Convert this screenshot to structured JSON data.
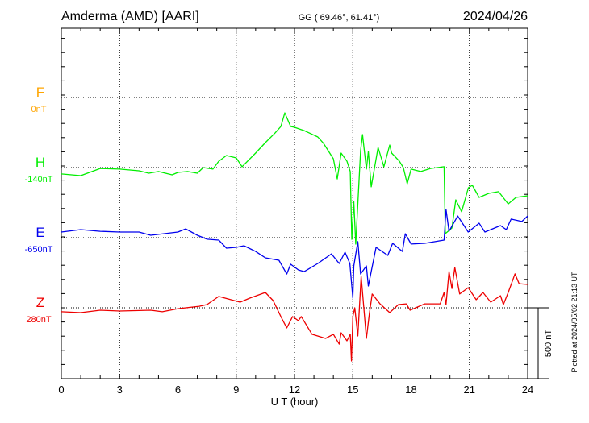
{
  "header": {
    "station": "Amderma (AMD)  [AARI]",
    "coords": "GG ( 69.46°,  61.41°)",
    "date": "2024/04/26"
  },
  "footer": {
    "plotted": "Plotted at 2024/05/02 21:13 UT"
  },
  "chart_data": {
    "type": "line",
    "title": "Amderma (AMD)  [AARI]",
    "xlabel": "U T (hour)",
    "ylabel": "",
    "xlim": [
      0,
      24
    ],
    "x_ticks": [
      "0",
      "3",
      "6",
      "9",
      "12",
      "15",
      "18",
      "21",
      "24"
    ],
    "grid": "dotted",
    "scale_bar": {
      "value": 500,
      "label": "500 nT"
    },
    "series": [
      {
        "name": "F",
        "baseline_label": "0nT",
        "baseline": 0,
        "color": "#ffa500",
        "points": []
      },
      {
        "name": "H",
        "baseline_label": "-140nT",
        "baseline": -140,
        "color": "#00ee00",
        "points": [
          [
            0,
            -185
          ],
          [
            1,
            -197
          ],
          [
            2,
            -146
          ],
          [
            3,
            -151
          ],
          [
            4,
            -163
          ],
          [
            4.5,
            -180
          ],
          [
            5,
            -168
          ],
          [
            5.7,
            -191
          ],
          [
            6,
            -174
          ],
          [
            6.5,
            -168
          ],
          [
            7,
            -180
          ],
          [
            7.3,
            -140
          ],
          [
            7.8,
            -151
          ],
          [
            8.1,
            -95
          ],
          [
            8.5,
            -55
          ],
          [
            9,
            -72
          ],
          [
            9.3,
            -134
          ],
          [
            10,
            -38
          ],
          [
            10.5,
            36
          ],
          [
            11,
            104
          ],
          [
            11.3,
            150
          ],
          [
            11.5,
            246
          ],
          [
            11.8,
            150
          ],
          [
            12,
            144
          ],
          [
            12.5,
            121
          ],
          [
            13.2,
            76
          ],
          [
            13.5,
            30
          ],
          [
            14,
            -78
          ],
          [
            14.2,
            -220
          ],
          [
            14.4,
            -38
          ],
          [
            14.7,
            -95
          ],
          [
            14.87,
            -168
          ],
          [
            14.95,
            -646
          ],
          [
            15.05,
            -379
          ],
          [
            15.15,
            -680
          ],
          [
            15.4,
            -21
          ],
          [
            15.5,
            93
          ],
          [
            15.7,
            -151
          ],
          [
            15.8,
            -26
          ],
          [
            15.95,
            -276
          ],
          [
            16.3,
            2
          ],
          [
            16.6,
            -134
          ],
          [
            16.9,
            19
          ],
          [
            17,
            -38
          ],
          [
            17.4,
            -95
          ],
          [
            17.6,
            -140
          ],
          [
            17.8,
            -254
          ],
          [
            18,
            -151
          ],
          [
            18.5,
            -168
          ],
          [
            19,
            -146
          ],
          [
            19.7,
            -134
          ],
          [
            19.76,
            -606
          ],
          [
            20.1,
            -566
          ],
          [
            20.3,
            -367
          ],
          [
            20.6,
            -452
          ],
          [
            20.95,
            -282
          ],
          [
            21.15,
            -265
          ],
          [
            21.5,
            -350
          ],
          [
            22,
            -322
          ],
          [
            22.5,
            -310
          ],
          [
            23,
            -396
          ],
          [
            23.4,
            -350
          ],
          [
            24,
            -339
          ]
        ]
      },
      {
        "name": "E",
        "baseline_label": "-650nT",
        "baseline": -650,
        "color": "#0000ee",
        "points": [
          [
            0,
            -610
          ],
          [
            1,
            -593
          ],
          [
            2,
            -605
          ],
          [
            3,
            -610
          ],
          [
            4,
            -610
          ],
          [
            4.6,
            -633
          ],
          [
            6,
            -610
          ],
          [
            6.4,
            -588
          ],
          [
            7,
            -633
          ],
          [
            7.5,
            -661
          ],
          [
            8.1,
            -667
          ],
          [
            8.5,
            -724
          ],
          [
            9,
            -718
          ],
          [
            9.4,
            -707
          ],
          [
            10,
            -747
          ],
          [
            10.5,
            -792
          ],
          [
            11.2,
            -809
          ],
          [
            11.6,
            -906
          ],
          [
            11.8,
            -837
          ],
          [
            12.2,
            -877
          ],
          [
            12.5,
            -889
          ],
          [
            13.2,
            -832
          ],
          [
            13.9,
            -764
          ],
          [
            14.3,
            -832
          ],
          [
            14.6,
            -752
          ],
          [
            14.85,
            -832
          ],
          [
            15,
            -1076
          ],
          [
            15.05,
            -849
          ],
          [
            15.26,
            -678
          ],
          [
            15.4,
            -906
          ],
          [
            15.7,
            -849
          ],
          [
            15.8,
            -991
          ],
          [
            16.2,
            -718
          ],
          [
            16.8,
            -775
          ],
          [
            17.05,
            -690
          ],
          [
            17.55,
            -747
          ],
          [
            17.7,
            -622
          ],
          [
            18,
            -695
          ],
          [
            18.7,
            -690
          ],
          [
            19.7,
            -667
          ],
          [
            19.8,
            -451
          ],
          [
            19.95,
            -605
          ],
          [
            20.4,
            -497
          ],
          [
            20.94,
            -610
          ],
          [
            21.5,
            -548
          ],
          [
            21.8,
            -610
          ],
          [
            22.6,
            -565
          ],
          [
            22.9,
            -593
          ],
          [
            23.15,
            -519
          ],
          [
            23.7,
            -536
          ],
          [
            24,
            -497
          ]
        ]
      },
      {
        "name": "Z",
        "baseline_label": "280nT",
        "baseline": 280,
        "color": "#ee0000",
        "points": [
          [
            0,
            252
          ],
          [
            1,
            246
          ],
          [
            2,
            263
          ],
          [
            3,
            257
          ],
          [
            4.6,
            263
          ],
          [
            5.2,
            252
          ],
          [
            6,
            274
          ],
          [
            7.1,
            291
          ],
          [
            7.5,
            303
          ],
          [
            8.1,
            360
          ],
          [
            9.2,
            320
          ],
          [
            9.7,
            348
          ],
          [
            10.5,
            388
          ],
          [
            10.9,
            331
          ],
          [
            11.3,
            218
          ],
          [
            11.6,
            138
          ],
          [
            11.9,
            218
          ],
          [
            12.2,
            189
          ],
          [
            12.35,
            218
          ],
          [
            12.9,
            93
          ],
          [
            13.6,
            64
          ],
          [
            14,
            93
          ],
          [
            14.3,
            24
          ],
          [
            14.4,
            104
          ],
          [
            14.7,
            47
          ],
          [
            14.87,
            93
          ],
          [
            14.93,
            -95
          ],
          [
            15,
            218
          ],
          [
            15.1,
            280
          ],
          [
            15.26,
            81
          ],
          [
            15.43,
            502
          ],
          [
            15.7,
            64
          ],
          [
            15.85,
            235
          ],
          [
            16,
            377
          ],
          [
            16.4,
            308
          ],
          [
            16.9,
            246
          ],
          [
            17.35,
            303
          ],
          [
            17.75,
            308
          ],
          [
            17.95,
            263
          ],
          [
            18.7,
            308
          ],
          [
            19.5,
            308
          ],
          [
            19.7,
            388
          ],
          [
            19.8,
            303
          ],
          [
            19.95,
            536
          ],
          [
            20.1,
            416
          ],
          [
            20.25,
            564
          ],
          [
            20.5,
            377
          ],
          [
            20.94,
            422
          ],
          [
            21.35,
            337
          ],
          [
            21.7,
            388
          ],
          [
            22.1,
            320
          ],
          [
            22.6,
            365
          ],
          [
            22.75,
            303
          ],
          [
            23,
            388
          ],
          [
            23.35,
            519
          ],
          [
            23.56,
            450
          ],
          [
            24,
            445
          ]
        ]
      }
    ]
  }
}
